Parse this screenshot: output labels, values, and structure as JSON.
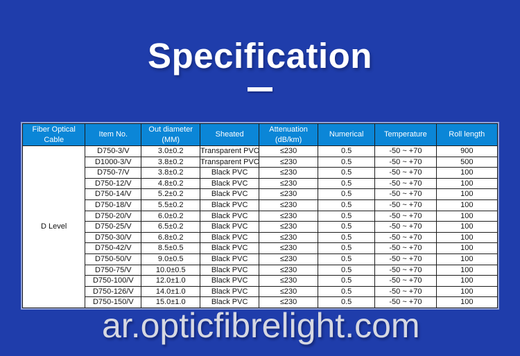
{
  "title": "Specification",
  "watermark": "ar.opticfibrelight.com",
  "colors": {
    "page_background": "#1f3dab",
    "table_header_background": "#0b86d7",
    "table_grid_line": "#1c1c1c",
    "table_header_text": "#ffffff",
    "table_cell_text": "#111111",
    "watermark_text": "#d6d8e2",
    "title_text": "#ffffff"
  },
  "table": {
    "group_label": "D Level",
    "headers": [
      "Fiber Optical Cable",
      "Item No.",
      "Out diameter (MM)",
      "Sheated",
      "Attenuation (dB/km)",
      "Numerical",
      "Temperature",
      "Roll length"
    ],
    "rows": [
      [
        "D750-3/V",
        "3.0±0.2",
        "Transparent PVC",
        "≤230",
        "0.5",
        "-50 ~ +70",
        "900"
      ],
      [
        "D1000-3/V",
        "3.8±0.2",
        "Transparent PVC",
        "≤230",
        "0.5",
        "-50 ~ +70",
        "500"
      ],
      [
        "D750-7/V",
        "3.8±0.2",
        "Black PVC",
        "≤230",
        "0.5",
        "-50 ~ +70",
        "100"
      ],
      [
        "D750-12/V",
        "4.8±0.2",
        "Black PVC",
        "≤230",
        "0.5",
        "-50 ~ +70",
        "100"
      ],
      [
        "D750-14/V",
        "5.2±0.2",
        "Black PVC",
        "≤230",
        "0.5",
        "-50 ~ +70",
        "100"
      ],
      [
        "D750-18/V",
        "5.5±0.2",
        "Black PVC",
        "≤230",
        "0.5",
        "-50 ~ +70",
        "100"
      ],
      [
        "D750-20/V",
        "6.0±0.2",
        "Black PVC",
        "≤230",
        "0.5",
        "-50 ~ +70",
        "100"
      ],
      [
        "D750-25/V",
        "6.5±0.2",
        "Black PVC",
        "≤230",
        "0.5",
        "-50 ~ +70",
        "100"
      ],
      [
        "D750-30/V",
        "6.8±0.2",
        "Black PVC",
        "≤230",
        "0.5",
        "-50 ~ +70",
        "100"
      ],
      [
        "D750-42/V",
        "8.5±0.5",
        "Black PVC",
        "≤230",
        "0.5",
        "-50 ~ +70",
        "100"
      ],
      [
        "D750-50/V",
        "9.0±0.5",
        "Black PVC",
        "≤230",
        "0.5",
        "-50 ~ +70",
        "100"
      ],
      [
        "D750-75/V",
        "10.0±0.5",
        "Black PVC",
        "≤230",
        "0.5",
        "-50 ~ +70",
        "100"
      ],
      [
        "D750-100/V",
        "12.0±1.0",
        "Black PVC",
        "≤230",
        "0.5",
        "-50 ~ +70",
        "100"
      ],
      [
        "D750-126/V",
        "14.0±1.0",
        "Black PVC",
        "≤230",
        "0.5",
        "-50 ~ +70",
        "100"
      ],
      [
        "D750-150/V",
        "15.0±1.0",
        "Black PVC",
        "≤230",
        "0.5",
        "-50 ~ +70",
        "100"
      ]
    ]
  }
}
